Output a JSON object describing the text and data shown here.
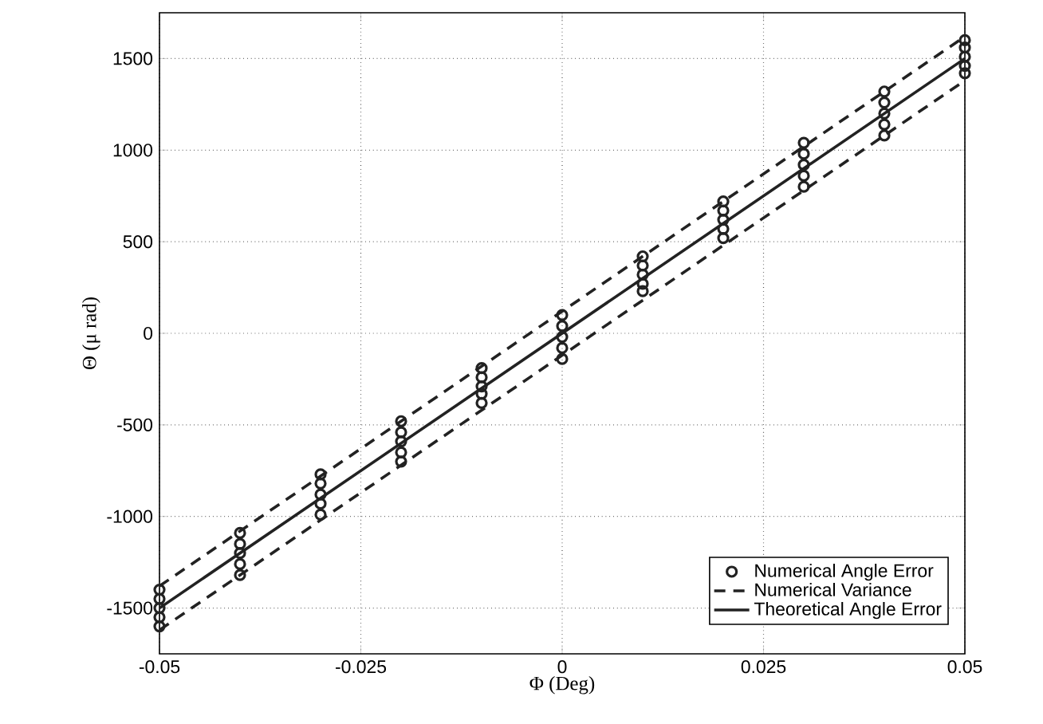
{
  "chart_data": {
    "type": "scatter",
    "xlabel": "Φ (Deg)",
    "ylabel": "Θ  (μ rad)",
    "xlim": [
      -0.05,
      0.05
    ],
    "ylim": [
      -1750,
      1750
    ],
    "xticks": [
      -0.05,
      -0.025,
      0,
      0.025,
      0.05
    ],
    "yticks": [
      -1500,
      -1000,
      -500,
      0,
      500,
      1000,
      1500
    ],
    "grid": true,
    "legend": "bottom right",
    "series": [
      {
        "name": "Numerical Angle Error",
        "color": "#222222",
        "marker": "circle",
        "x": [
          -0.05,
          -0.05,
          -0.05,
          -0.05,
          -0.05,
          -0.04,
          -0.04,
          -0.04,
          -0.04,
          -0.04,
          -0.03,
          -0.03,
          -0.03,
          -0.03,
          -0.03,
          -0.02,
          -0.02,
          -0.02,
          -0.02,
          -0.02,
          -0.01,
          -0.01,
          -0.01,
          -0.01,
          -0.01,
          0,
          0,
          0,
          0,
          0,
          0.01,
          0.01,
          0.01,
          0.01,
          0.01,
          0.02,
          0.02,
          0.02,
          0.02,
          0.02,
          0.03,
          0.03,
          0.03,
          0.03,
          0.03,
          0.04,
          0.04,
          0.04,
          0.04,
          0.04,
          0.05,
          0.05,
          0.05,
          0.05,
          0.05
        ],
        "values": [
          -1600,
          -1550,
          -1500,
          -1450,
          -1400,
          -1320,
          -1260,
          -1200,
          -1150,
          -1090,
          -990,
          -930,
          -880,
          -820,
          -770,
          -700,
          -650,
          -590,
          -540,
          -480,
          -380,
          -330,
          -290,
          -240,
          -190,
          -140,
          -80,
          -20,
          40,
          100,
          230,
          270,
          320,
          370,
          420,
          520,
          570,
          620,
          670,
          720,
          800,
          860,
          920,
          980,
          1040,
          1080,
          1140,
          1200,
          1260,
          1320,
          1420,
          1460,
          1510,
          1560,
          1600
        ]
      },
      {
        "type": "line",
        "name": "Numerical Variance",
        "color": "#222222",
        "line_style": "dashed",
        "x": [
          -0.05,
          0.05
        ],
        "values": [
          -1380,
          1620
        ]
      },
      {
        "type": "line",
        "color": "#222222",
        "line_style": "dashed",
        "x": [
          -0.05,
          0.05
        ],
        "values": [
          -1620,
          1380
        ]
      },
      {
        "type": "line",
        "name": "Theoretical Angle Error",
        "color": "#222222",
        "line_style": "solid",
        "x": [
          -0.05,
          0.05
        ],
        "values": [
          -1500,
          1500
        ]
      }
    ]
  }
}
